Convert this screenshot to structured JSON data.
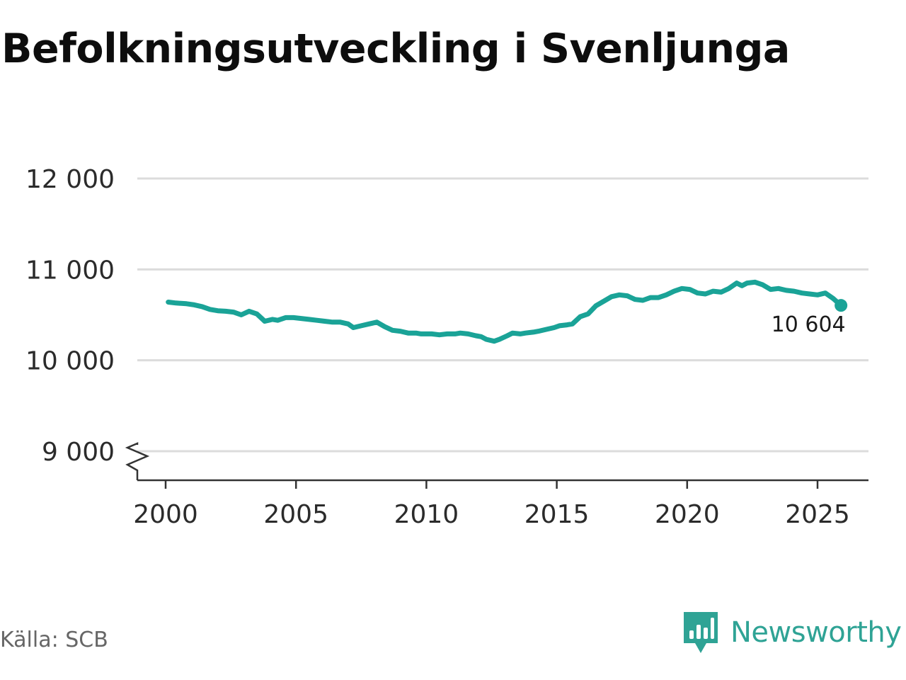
{
  "title": "Befolkningsutveckling i Svenljunga",
  "source": "Källa: SCB",
  "brand": {
    "name": "Newsworthy",
    "icon": "newsworthy-logo-icon",
    "color": "#2fa395"
  },
  "chart_data": {
    "type": "line",
    "title": "Befolkningsutveckling i Svenljunga",
    "xlabel": "",
    "ylabel": "",
    "xlim": [
      1999.0,
      2027.2
    ],
    "ylim": [
      8670,
      12000
    ],
    "y_axis_break": true,
    "grid": true,
    "x_ticks": [
      {
        "value": 2000,
        "label": "2000"
      },
      {
        "value": 2005,
        "label": "2005"
      },
      {
        "value": 2010,
        "label": "2010"
      },
      {
        "value": 2015,
        "label": "2015"
      },
      {
        "value": 2020,
        "label": "2020"
      },
      {
        "value": 2025,
        "label": "2025"
      }
    ],
    "y_ticks": [
      {
        "value": 9000,
        "label": "9 000"
      },
      {
        "value": 10000,
        "label": "10 000"
      },
      {
        "value": 11000,
        "label": "11 000"
      },
      {
        "value": 12000,
        "label": "12 000"
      }
    ],
    "series": [
      {
        "color": "#1aa397",
        "x": [
          2000.1,
          2000.4,
          2000.8,
          2001.1,
          2001.4,
          2001.7,
          2002.0,
          2002.3,
          2002.6,
          2002.9,
          2003.2,
          2003.5,
          2003.8,
          2004.1,
          2004.3,
          2004.6,
          2004.9,
          2005.2,
          2005.5,
          2005.8,
          2006.1,
          2006.4,
          2006.7,
          2007.0,
          2007.2,
          2007.5,
          2007.8,
          2008.1,
          2008.4,
          2008.7,
          2009.0,
          2009.3,
          2009.6,
          2009.8,
          2010.2,
          2010.5,
          2010.8,
          2011.1,
          2011.3,
          2011.6,
          2011.9,
          2012.1,
          2012.3,
          2012.6,
          2012.8,
          2013.1,
          2013.3,
          2013.6,
          2013.8,
          2014.1,
          2014.3,
          2014.6,
          2014.9,
          2015.1,
          2015.4,
          2015.6,
          2015.9,
          2016.2,
          2016.5,
          2016.8,
          2017.1,
          2017.4,
          2017.7,
          2018.0,
          2018.3,
          2018.6,
          2018.9,
          2019.2,
          2019.5,
          2019.8,
          2020.1,
          2020.4,
          2020.7,
          2021.0,
          2021.3,
          2021.6,
          2021.9,
          2022.1,
          2022.3,
          2022.6,
          2022.9,
          2023.2,
          2023.5,
          2023.8,
          2024.1,
          2024.4,
          2024.7,
          2025.0,
          2025.3,
          2025.6,
          2025.9
        ],
        "y": [
          10640,
          10630,
          10622,
          10610,
          10590,
          10560,
          10545,
          10540,
          10530,
          10500,
          10540,
          10510,
          10430,
          10450,
          10440,
          10470,
          10470,
          10460,
          10450,
          10440,
          10430,
          10420,
          10420,
          10400,
          10360,
          10380,
          10400,
          10420,
          10370,
          10330,
          10320,
          10300,
          10300,
          10290,
          10290,
          10280,
          10290,
          10290,
          10300,
          10290,
          10270,
          10260,
          10230,
          10210,
          10230,
          10270,
          10300,
          10290,
          10300,
          10310,
          10320,
          10340,
          10360,
          10380,
          10390,
          10400,
          10480,
          10510,
          10600,
          10650,
          10700,
          10720,
          10710,
          10670,
          10660,
          10690,
          10690,
          10720,
          10760,
          10790,
          10780,
          10740,
          10730,
          10760,
          10750,
          10790,
          10850,
          10820,
          10850,
          10860,
          10830,
          10780,
          10790,
          10770,
          10760,
          10740,
          10730,
          10720,
          10740,
          10680,
          10604
        ]
      }
    ],
    "end_point": {
      "x": 2025.9,
      "y": 10604,
      "label": "10 604"
    }
  }
}
